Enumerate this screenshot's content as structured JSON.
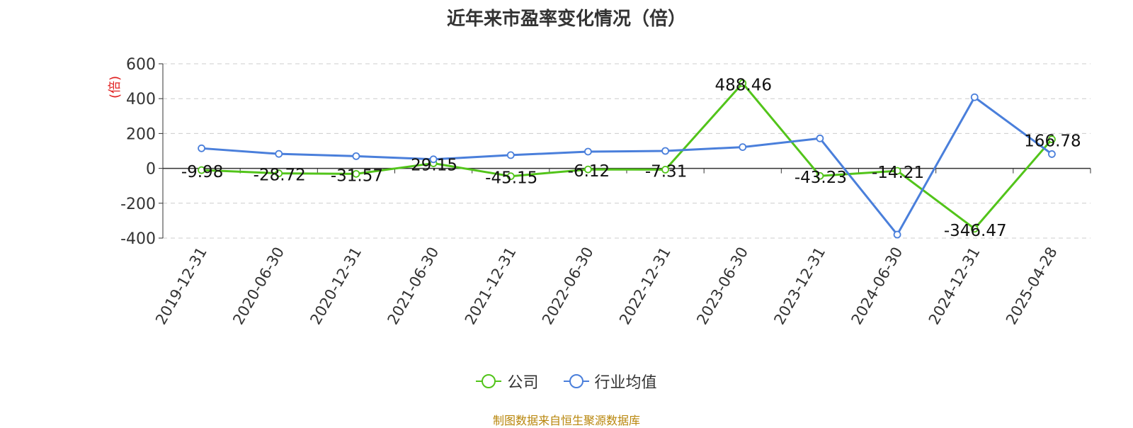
{
  "chart_title": "近年来市盈率变化情况（倍）",
  "source_note": "制图数据来自恒生聚源数据库",
  "chart_data": {
    "type": "line",
    "title": "近年来市盈率变化情况（倍）",
    "ylabel": "(倍)",
    "xlabel": "",
    "ylim": [
      -400,
      600
    ],
    "yticks": [
      600,
      400,
      200,
      0,
      -200,
      -400
    ],
    "grid": true,
    "legend_position": "bottom-center",
    "categories": [
      "2019-12-31",
      "2020-06-30",
      "2020-12-31",
      "2021-06-30",
      "2021-12-31",
      "2022-06-30",
      "2022-12-31",
      "2023-06-30",
      "2023-12-31",
      "2024-06-30",
      "2024-12-31",
      "2025-04-28"
    ],
    "series": [
      {
        "name": "公司",
        "color": "#52c41a",
        "values": [
          -9.98,
          -28.72,
          -31.57,
          29.15,
          -45.15,
          -6.12,
          -7.31,
          488.46,
          -43.23,
          -14.21,
          -346.47,
          166.78
        ],
        "labels": [
          "-9.98",
          "-28.72",
          "-31.57",
          "29.15",
          "-45.15",
          "-6.12",
          "-7.31",
          "488.46",
          "-43.23",
          "-14.21",
          "-346.47",
          "166.78"
        ]
      },
      {
        "name": "行业均值",
        "color": "#4a7fdb",
        "values": [
          115,
          83,
          70,
          52,
          76,
          96,
          100,
          122,
          172,
          -380,
          408,
          82
        ]
      }
    ]
  }
}
